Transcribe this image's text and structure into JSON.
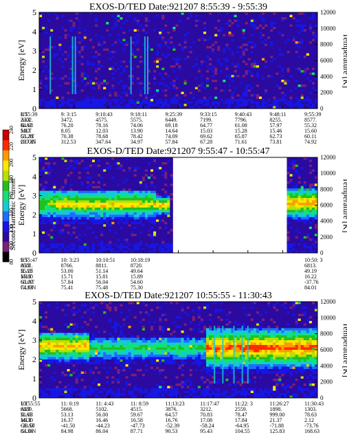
{
  "colorbar": {
    "label": "Second Harmonic Current",
    "ticks": [
      "80",
      "100",
      "120",
      "140",
      "160",
      "180",
      "200",
      "220",
      "240"
    ],
    "colors": [
      "#000000",
      "#7a1f7a",
      "#2a0aa0",
      "#1616e6",
      "#1e6cff",
      "#15c8d8",
      "#14e07a",
      "#20c020",
      "#b8e000",
      "#ffe800",
      "#ff9a00",
      "#ff2a00",
      "#c80000"
    ]
  },
  "common": {
    "ylabel": "Energy [eV]",
    "y2label": "Temperature [K]",
    "yticks": [
      "0",
      "1",
      "2",
      "3",
      "4",
      "5"
    ],
    "y2ticks": [
      "0",
      "2000",
      "4000",
      "6000",
      "8000",
      "10000",
      "12000"
    ],
    "row_labels": [
      "UT",
      "ALT",
      "ILAT",
      "MLT",
      "GLAT",
      "GLON"
    ]
  },
  "chart_data": [
    {
      "type": "heatmap",
      "title": "EXOS-D/TED   Date:921207   8:55:39 - 9:55:39",
      "ylim": [
        0,
        5
      ],
      "y2lim": [
        0,
        12000
      ],
      "bands": [],
      "streaks": [
        0.04,
        0.12,
        0.13,
        0.33,
        0.38,
        0.39
      ],
      "gap": null,
      "rows": [
        [
          "8:55:39",
          "9: 3:15",
          "9:10:43",
          "9:18:11",
          "9:25:39",
          "9:33:15",
          "9:40:43",
          "9:48:11",
          "9:55:39"
        ],
        [
          "2302.",
          "3472.",
          "4575.",
          "5575.",
          "6449.",
          "7199.",
          "7796.",
          "8255.",
          "8577."
        ],
        [
          "64.68",
          "76.20",
          "78.16",
          "74.06",
          "69.18",
          "64.77",
          "61.08",
          "57.97",
          "55.32"
        ],
        [
          "5.67",
          "8.05",
          "12.03",
          "13.90",
          "14.64",
          "15.03",
          "15.28",
          "15.46",
          "15.60"
        ],
        [
          "55.28",
          "70.38",
          "78.68",
          "78.42",
          "74.09",
          "69.62",
          "65.87",
          "62.73",
          "60.11"
        ],
        [
          "297.85",
          "312.53",
          "347.64",
          "34.97",
          "57.84",
          "67.28",
          "71.61",
          "73.81",
          "74.92"
        ]
      ]
    },
    {
      "type": "heatmap",
      "title": "EXOS-D/TED   Date:921207   9:55:47 - 10:55:47",
      "ylim": [
        0,
        5
      ],
      "y2lim": [
        0,
        12000
      ],
      "bands": [
        {
          "x0": 0.0,
          "x1": 0.42,
          "e0": 1.5,
          "e1": 3.3,
          "peak": 2.6,
          "level": 0.45
        },
        {
          "x0": 0.06,
          "x1": 0.47,
          "e0": 1.9,
          "e1": 3.0,
          "peak": 2.5,
          "level": 0.6
        },
        {
          "x0": 0.89,
          "x1": 1.0,
          "e0": 1.6,
          "e1": 3.4,
          "peak": 2.6,
          "level": 0.62
        }
      ],
      "streaks": [],
      "gap": [
        0.475,
        0.89
      ],
      "rows": [
        [
          "9:55:47",
          "10: 3:23",
          "10:10:51",
          "10:18:19",
          "",
          "",
          "",
          "",
          "10:50: 3"
        ],
        [
          "8581.",
          "8766.",
          "8811.",
          "8720.",
          "",
          "",
          "",
          "",
          "6813."
        ],
        [
          "55.28",
          "53.00",
          "51.14",
          "49.64",
          "",
          "",
          "",
          "",
          "49.19"
        ],
        [
          "15.60",
          "15.71",
          "15.81",
          "15.89",
          "",
          "",
          "",
          "",
          "16.22"
        ],
        [
          "60.07",
          "57.84",
          "56.04",
          "54.60",
          "",
          "",
          "",
          "",
          "-37.76"
        ],
        [
          "74.93",
          "75.41",
          "75.48",
          "75.30",
          "",
          "",
          "",
          "",
          "84.01"
        ]
      ]
    },
    {
      "type": "heatmap",
      "title": "EXOS-D/TED   Date:921207   10:55:55 - 11:30:43",
      "ylim": [
        0,
        5
      ],
      "y2lim": [
        0,
        12000
      ],
      "bands": [
        {
          "x0": 0.0,
          "x1": 0.18,
          "e0": 1.7,
          "e1": 3.4,
          "peak": 2.7,
          "level": 0.6
        },
        {
          "x0": 0.15,
          "x1": 0.62,
          "e0": 1.8,
          "e1": 3.1,
          "peak": 2.6,
          "level": 0.35
        },
        {
          "x0": 0.6,
          "x1": 1.0,
          "e0": 1.3,
          "e1": 3.6,
          "peak": 2.6,
          "level": 0.7
        },
        {
          "x0": 0.72,
          "x1": 0.8,
          "e0": 2.1,
          "e1": 3.2,
          "peak": 2.6,
          "level": 0.9
        }
      ],
      "streaks": [
        0.63,
        0.66,
        0.7,
        0.73,
        0.75
      ],
      "gap": null,
      "rows": [
        [
          "10:55:55",
          "11: 0:19",
          "11: 4:43",
          "11: 8:59",
          "11:13:23",
          "11:17:47",
          "11:22: 3",
          "11:26:27",
          "11:30:43"
        ],
        [
          "6189.",
          "5668.",
          "5102.",
          "4515.",
          "3876.",
          "3212.",
          "2559.",
          "1898.",
          "1303."
        ],
        [
          "51.03",
          "53.13",
          "56.00",
          "59.67",
          "64.57",
          "70.83",
          "78.47",
          "999.00",
          "78.63"
        ],
        [
          "16.30",
          "16.37",
          "16.46",
          "16.58",
          "16.76",
          "17.08",
          "17.84",
          "21.37",
          "2.12"
        ],
        [
          "-39.50",
          "-41.50",
          "-44.23",
          "-47.73",
          "-52.39",
          "-58.24",
          "-64.95",
          "-71.88",
          "-73.76"
        ],
        [
          "84.36",
          "84.98",
          "86.04",
          "87.71",
          "90.53",
          "95.43",
          "104.55",
          "125.83",
          "168.63"
        ]
      ]
    }
  ]
}
